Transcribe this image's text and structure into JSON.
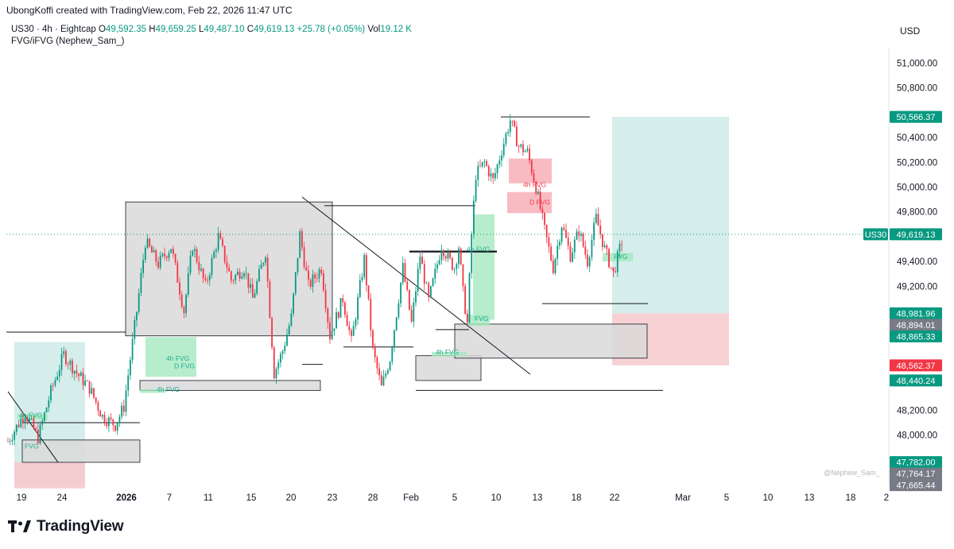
{
  "header": {
    "credit": "UbongKoffi created with TradingView.com, Feb 22, 2026 11:47 UTC"
  },
  "legend": {
    "symbol": "US30 · 4h · Eightcap",
    "o_label": "O",
    "o_value": "49,592.35",
    "h_label": "H",
    "h_value": "49,659.25",
    "l_label": "L",
    "l_value": "49,487.10",
    "c_label": "C",
    "c_value": "49,619.13",
    "change": "+25.78 (+0.05%)",
    "vol_label": "Vol",
    "vol_value": "19.12 K",
    "indicator": "FVG/iFVG (Nephew_Sam_)"
  },
  "currency": "USD",
  "watermark": "@Nephew_Sam_",
  "footer": {
    "brand": "TradingView"
  },
  "colors": {
    "up": "#089981",
    "down": "#f23645",
    "zone_green": "#b2dfdb",
    "zone_red": "#f7c9cd",
    "fvg_green": "#a5e8bf",
    "fvg_red": "#f7b4bb",
    "gray_box": "#d9d9d9",
    "axis_text": "#131722"
  },
  "chart_data": {
    "type": "candlestick",
    "title": "",
    "ylim": [
      47600,
      51150
    ],
    "y_ticks": [
      {
        "value": 51000,
        "label": "51,000.00"
      },
      {
        "value": 50800,
        "label": "50,800.00"
      },
      {
        "value": 50400,
        "label": "50,400.00"
      },
      {
        "value": 50200,
        "label": "50,200.00"
      },
      {
        "value": 50000,
        "label": "50,000.00"
      },
      {
        "value": 49800,
        "label": "49,800.00"
      },
      {
        "value": 49400,
        "label": "49,400.00"
      },
      {
        "value": 49200,
        "label": "49,200.00"
      },
      {
        "value": 48200,
        "label": "48,200.00"
      },
      {
        "value": 48000,
        "label": "48,000.00"
      }
    ],
    "x_ticks": [
      {
        "label": "19",
        "bold": false
      },
      {
        "label": "24",
        "bold": false
      },
      {
        "label": "2026",
        "bold": true
      },
      {
        "label": "7",
        "bold": false
      },
      {
        "label": "11",
        "bold": false
      },
      {
        "label": "15",
        "bold": false
      },
      {
        "label": "20",
        "bold": false
      },
      {
        "label": "23",
        "bold": false
      },
      {
        "label": "28",
        "bold": false
      },
      {
        "label": "Feb",
        "bold": false
      },
      {
        "label": "5",
        "bold": false
      },
      {
        "label": "10",
        "bold": false
      },
      {
        "label": "13",
        "bold": false
      },
      {
        "label": "18",
        "bold": false
      },
      {
        "label": "22",
        "bold": false
      },
      {
        "label": "Mar",
        "bold": false
      },
      {
        "label": "5",
        "bold": false
      },
      {
        "label": "10",
        "bold": false
      },
      {
        "label": "13",
        "bold": false
      },
      {
        "label": "18",
        "bold": false
      },
      {
        "label": "2",
        "bold": false
      }
    ],
    "price_tags": [
      {
        "value": 50566.37,
        "label": "50,566.37",
        "color": "#089981"
      },
      {
        "value": 49619.13,
        "label": "49,619.13",
        "color": "#089981",
        "symbol": "US30"
      },
      {
        "value": 48981.96,
        "label": "48,981.96",
        "color": "#089981"
      },
      {
        "value": 48894.01,
        "label": "48,894.01",
        "color": "#787b86"
      },
      {
        "value": 48865.33,
        "label": "48,865.33",
        "color": "#089981"
      },
      {
        "value": 48562.37,
        "label": "48,562.37",
        "color": "#f23645"
      },
      {
        "value": 48440.24,
        "label": "48,440.24",
        "color": "#089981"
      },
      {
        "value": 47782.0,
        "label": "47,782.00",
        "color": "#089981"
      },
      {
        "value": 47764.17,
        "label": "47,764.17",
        "color": "#787b86"
      },
      {
        "value": 47665.44,
        "label": "47,665.44",
        "color": "#787b86"
      }
    ],
    "current_price": 49619.13,
    "fvg_labels": [
      {
        "text": "4h FVG",
        "kind": "bull"
      },
      {
        "text": "FVG",
        "kind": "bull"
      },
      {
        "text": "4h FVG",
        "kind": "bull"
      },
      {
        "text": "D FVG",
        "kind": "bull"
      },
      {
        "text": "4h FVG",
        "kind": "bull"
      },
      {
        "text": "4h FVG",
        "kind": "bull"
      },
      {
        "text": "4h FVG",
        "kind": "bull"
      },
      {
        "text": "FVG",
        "kind": "bull"
      },
      {
        "text": "4h FVG",
        "kind": "bear"
      },
      {
        "text": "D FVG",
        "kind": "bear"
      },
      {
        "text": "FVG",
        "kind": "bull"
      }
    ],
    "path": [
      [
        0,
        47950
      ],
      [
        8,
        48180
      ],
      [
        14,
        47980
      ],
      [
        20,
        48350
      ],
      [
        26,
        48650
      ],
      [
        32,
        48500
      ],
      [
        38,
        48380
      ],
      [
        44,
        48150
      ],
      [
        50,
        48080
      ],
      [
        54,
        48230
      ],
      [
        60,
        49000
      ],
      [
        64,
        49560
      ],
      [
        70,
        49380
      ],
      [
        76,
        49520
      ],
      [
        82,
        49000
      ],
      [
        86,
        49530
      ],
      [
        92,
        49200
      ],
      [
        98,
        49600
      ],
      [
        104,
        49250
      ],
      [
        110,
        49350
      ],
      [
        114,
        49100
      ],
      [
        120,
        49480
      ],
      [
        124,
        48500
      ],
      [
        128,
        48680
      ],
      [
        132,
        48950
      ],
      [
        136,
        49620
      ],
      [
        140,
        49200
      ],
      [
        146,
        49350
      ],
      [
        150,
        48800
      ],
      [
        156,
        49100
      ],
      [
        160,
        48750
      ],
      [
        166,
        49420
      ],
      [
        170,
        48680
      ],
      [
        174,
        48380
      ],
      [
        178,
        48620
      ],
      [
        184,
        49350
      ],
      [
        188,
        48900
      ],
      [
        192,
        49450
      ],
      [
        196,
        49080
      ],
      [
        202,
        49530
      ],
      [
        206,
        49400
      ],
      [
        208,
        49350
      ],
      [
        210,
        49520
      ],
      [
        212,
        49150
      ],
      [
        214,
        48900
      ],
      [
        216,
        49620
      ],
      [
        218,
        50100
      ],
      [
        222,
        50200
      ],
      [
        226,
        50050
      ],
      [
        230,
        50300
      ],
      [
        234,
        50540
      ],
      [
        238,
        50330
      ],
      [
        242,
        50280
      ],
      [
        246,
        50000
      ],
      [
        250,
        49650
      ],
      [
        254,
        49350
      ],
      [
        258,
        49700
      ],
      [
        262,
        49450
      ],
      [
        266,
        49650
      ],
      [
        270,
        49400
      ],
      [
        274,
        49750
      ],
      [
        278,
        49500
      ],
      [
        282,
        49300
      ],
      [
        286,
        49560
      ]
    ]
  }
}
